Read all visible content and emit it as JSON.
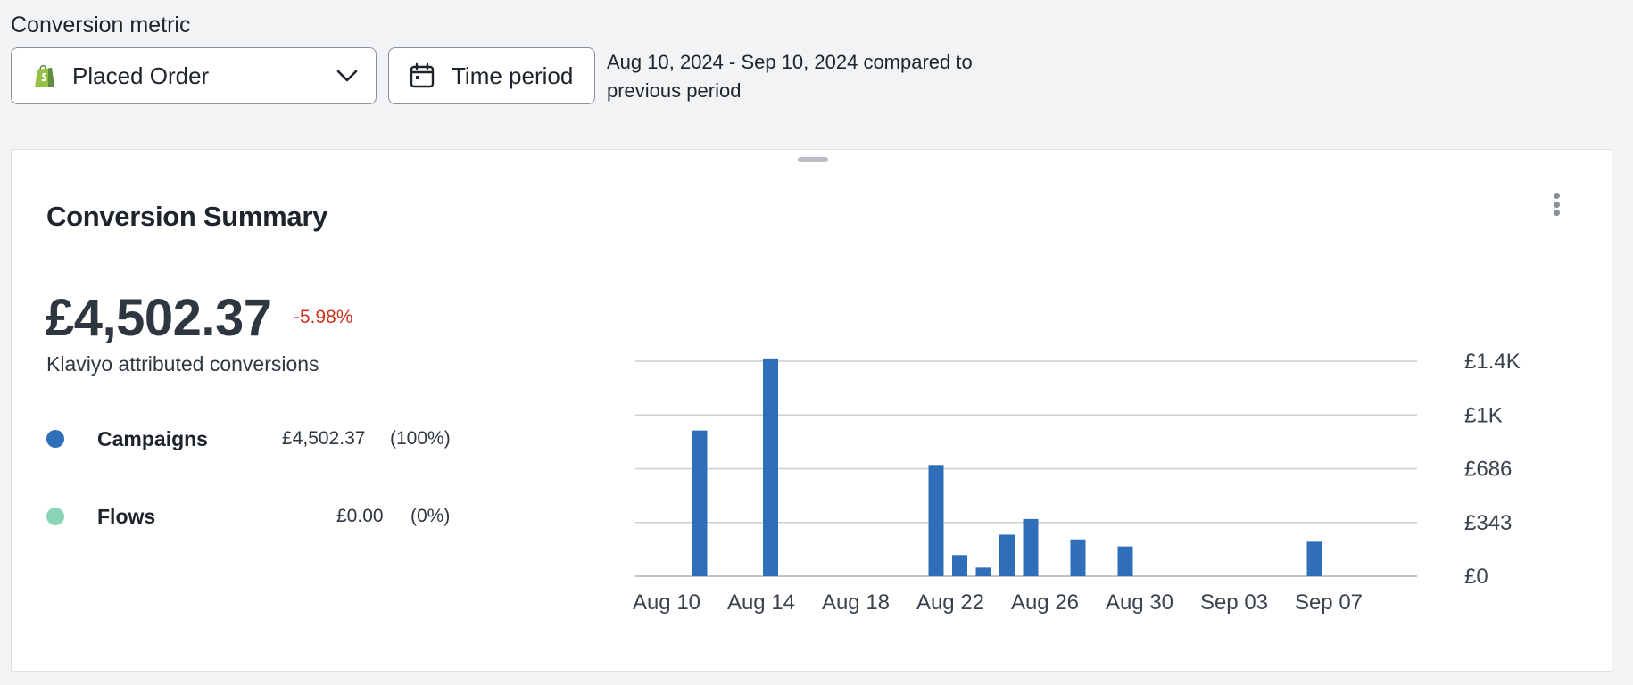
{
  "header": {
    "metric_label": "Conversion metric",
    "metric_select": {
      "value": "Placed Order",
      "icon": "shopify-bag-icon",
      "chevron": "chevron-down-icon"
    },
    "period_button": {
      "label": "Time period",
      "icon": "calendar-icon"
    },
    "date_range_line1": "Aug 10, 2024 - Sep 10, 2024 compared to",
    "date_range_line2": "previous period"
  },
  "card": {
    "title": "Conversion Summary",
    "total": "£4,502.37",
    "delta": "-5.98%",
    "subtitle": "Klaviyo attributed conversions",
    "legend": [
      {
        "name": "Campaigns",
        "value": "£4,502.37",
        "pct": "(100%)",
        "color": "#2f6fba"
      },
      {
        "name": "Flows",
        "value": "£0.00",
        "pct": "(0%)",
        "color": "#8ad5b6"
      }
    ]
  },
  "colors": {
    "bar": "#2f6fba",
    "negative": "#d0311f",
    "shopify": "#95bf47"
  },
  "chart_data": {
    "type": "bar",
    "x_start": "Aug 10",
    "categories": [
      "Aug 10",
      "Aug 11",
      "Aug 12",
      "Aug 13",
      "Aug 14",
      "Aug 15",
      "Aug 16",
      "Aug 17",
      "Aug 18",
      "Aug 19",
      "Aug 20",
      "Aug 21",
      "Aug 22",
      "Aug 23",
      "Aug 24",
      "Aug 25",
      "Aug 26",
      "Aug 27",
      "Aug 28",
      "Aug 29",
      "Aug 30",
      "Aug 31",
      "Sep 01",
      "Sep 02",
      "Sep 03",
      "Sep 04",
      "Sep 05",
      "Sep 06",
      "Sep 07",
      "Sep 08",
      "Sep 09",
      "Sep 10"
    ],
    "series": [
      {
        "values": [
          0,
          0,
          930,
          0,
          0,
          1390,
          0,
          0,
          0,
          0,
          0,
          0,
          710,
          135,
          55,
          265,
          365,
          0,
          235,
          0,
          190,
          0,
          0,
          0,
          0,
          0,
          0,
          0,
          220,
          0,
          0,
          0
        ]
      }
    ],
    "x_tick_labels": [
      "Aug 10",
      "Aug 14",
      "Aug 18",
      "Aug 22",
      "Aug 26",
      "Aug 30",
      "Sep 03",
      "Sep 07"
    ],
    "y_tick_labels": [
      "£0",
      "£343",
      "£686",
      "£1K",
      "£1.4K"
    ],
    "y_ticks": [
      0,
      343,
      686,
      1029,
      1372
    ],
    "ylim": [
      0,
      1372
    ],
    "grid": true,
    "y_axis_position": "right"
  }
}
